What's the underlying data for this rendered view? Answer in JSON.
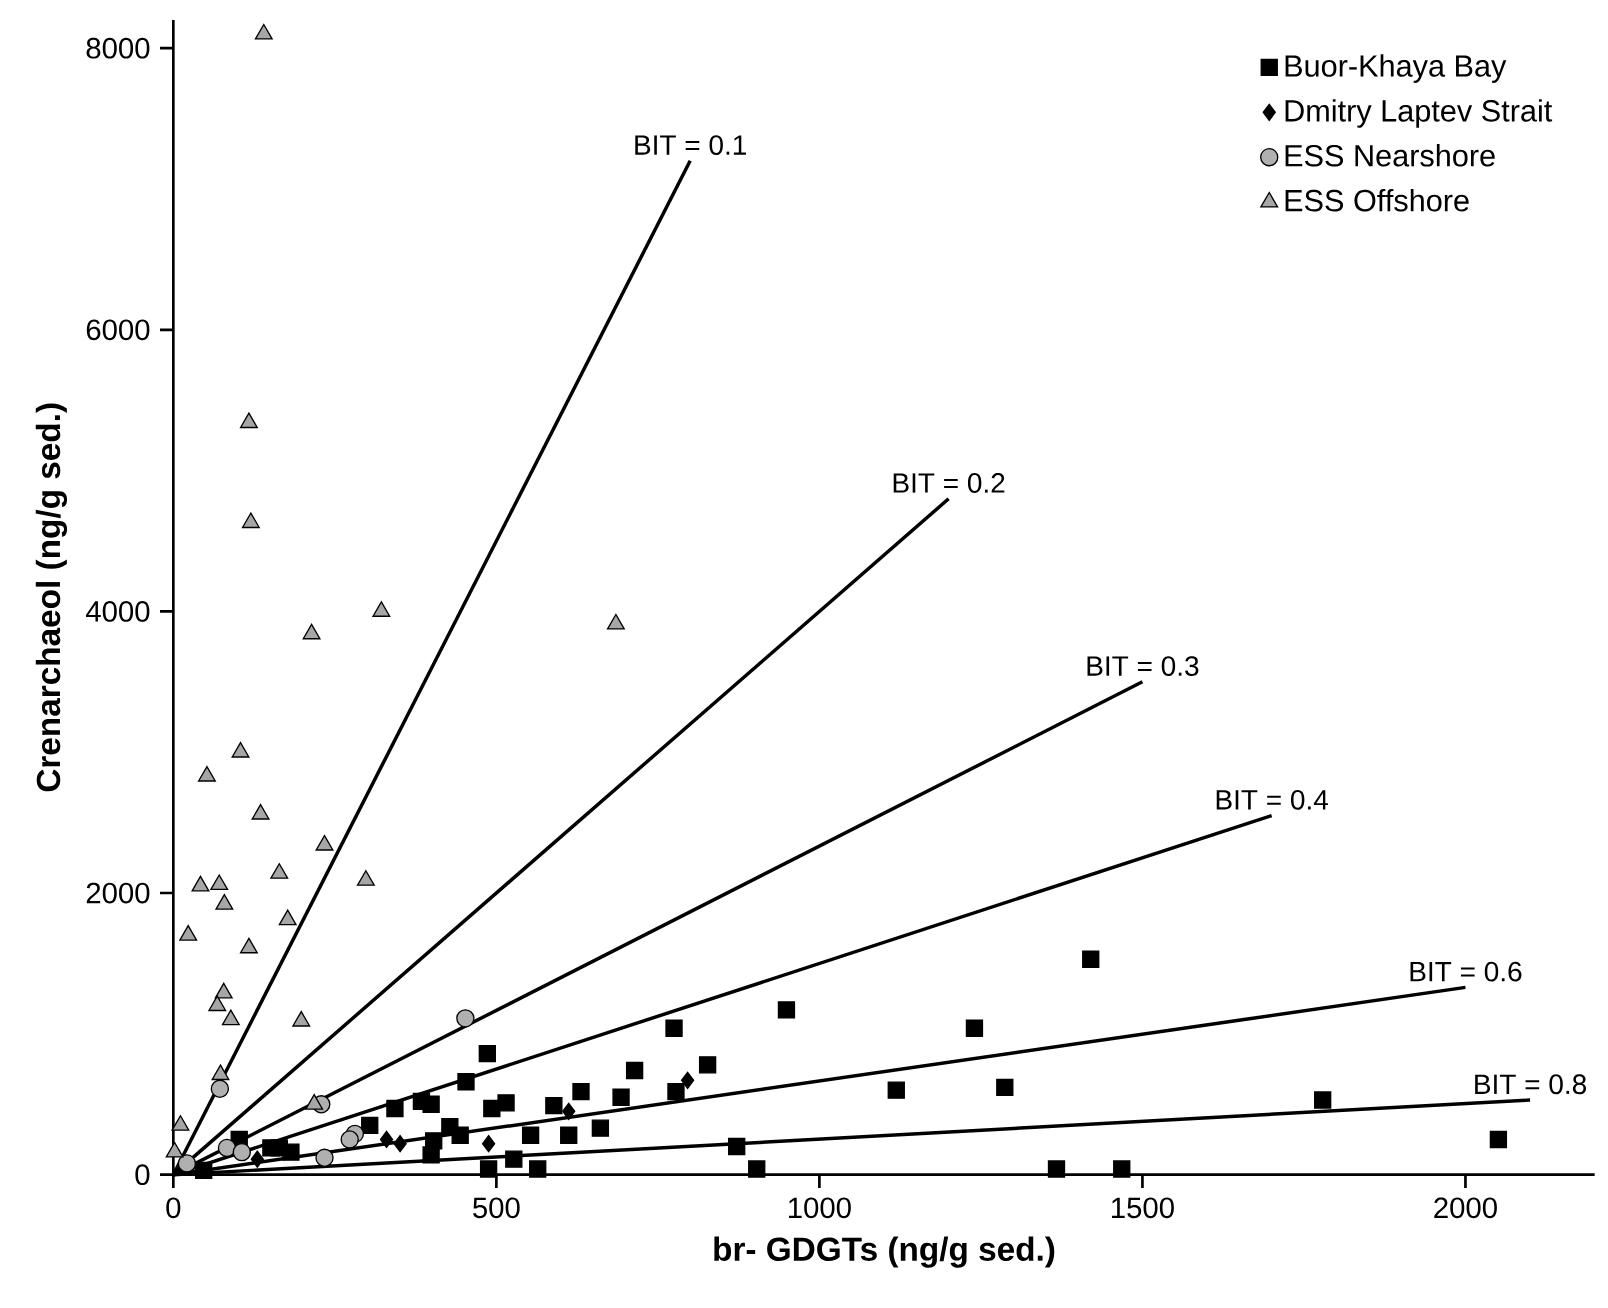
{
  "chart_data": {
    "type": "scatter",
    "xlabel": "br- GDGTs (ng/g sed.)",
    "ylabel": "Crenarchaeol (ng/g sed.)",
    "xlim": [
      0,
      2200
    ],
    "ylim": [
      0,
      8200
    ],
    "xticks": [
      0,
      500,
      1000,
      1500,
      2000
    ],
    "yticks": [
      0,
      2000,
      4000,
      6000,
      8000
    ],
    "legend": "top right",
    "series": [
      {
        "name": "Buor-Khaya Bay",
        "marker": "square",
        "color": "#000000",
        "x": [
          775,
          486,
          714,
          827,
          453,
          631,
          693,
          778,
          343,
          384,
          399,
          493,
          515,
          589,
          304,
          428,
          444,
          403,
          399,
          553,
          612,
          661,
          527,
          488,
          564,
          102,
          151,
          182,
          164,
          47,
          949,
          1420,
          1240,
          1119,
          1287,
          1779,
          2051,
          872,
          903,
          1367,
          1468
        ],
        "values": [
          1040,
          860,
          740,
          780,
          660,
          590,
          550,
          590,
          470,
          520,
          500,
          470,
          510,
          490,
          350,
          340,
          280,
          240,
          140,
          280,
          280,
          330,
          110,
          40,
          40,
          250,
          190,
          160,
          190,
          30,
          1170,
          1530,
          1040,
          600,
          620,
          530,
          250,
          200,
          40,
          40,
          40
        ]
      },
      {
        "name": "Dmitry Laptev Strait",
        "marker": "diamond",
        "color": "#000000",
        "x": [
          796,
          612,
          488,
          330,
          351,
          130
        ],
        "values": [
          670,
          450,
          220,
          250,
          220,
          110
        ]
      },
      {
        "name": "ESS Nearshore",
        "marker": "circle",
        "color": "#b0b0b0",
        "x": [
          452,
          72,
          229,
          281,
          273,
          234,
          83,
          106,
          21
        ],
        "values": [
          1110,
          610,
          500,
          290,
          250,
          120,
          190,
          160,
          80
        ]
      },
      {
        "name": "ESS Offshore",
        "marker": "triangle",
        "color": "#a6a6a6",
        "x": [
          140,
          117,
          120,
          322,
          214,
          685,
          104,
          52,
          135,
          234,
          42,
          71,
          164,
          298,
          79,
          177,
          23,
          117,
          78,
          68,
          89,
          198,
          73,
          11,
          2,
          218
        ],
        "values": [
          8100,
          5340,
          4630,
          4000,
          3840,
          3910,
          3000,
          2830,
          2560,
          2340,
          2050,
          2060,
          2140,
          2090,
          1920,
          1810,
          1700,
          1610,
          1290,
          1200,
          1100,
          1090,
          710,
          350,
          160,
          500
        ]
      },
      {
        "name": "BIT = 0.1",
        "type": "line",
        "marker": "none",
        "color": "#000000",
        "x": [
          0,
          800
        ],
        "values": [
          0,
          7200
        ]
      },
      {
        "name": "BIT = 0.2",
        "type": "line",
        "marker": "none",
        "color": "#000000",
        "x": [
          0,
          1200
        ],
        "values": [
          0,
          4800
        ]
      },
      {
        "name": "BIT = 0.3",
        "type": "line",
        "marker": "none",
        "color": "#000000",
        "x": [
          0,
          1500
        ],
        "values": [
          0,
          3500
        ]
      },
      {
        "name": "BIT = 0.4",
        "type": "line",
        "marker": "none",
        "color": "#000000",
        "x": [
          0,
          1700
        ],
        "values": [
          0,
          2550
        ]
      },
      {
        "name": "BIT = 0.6",
        "type": "line",
        "marker": "none",
        "color": "#000000",
        "x": [
          0,
          2000
        ],
        "values": [
          0,
          1330
        ]
      },
      {
        "name": "BIT = 0.8",
        "type": "line",
        "marker": "none",
        "color": "#000000",
        "x": [
          0,
          2100
        ],
        "values": [
          0,
          530
        ]
      }
    ]
  }
}
